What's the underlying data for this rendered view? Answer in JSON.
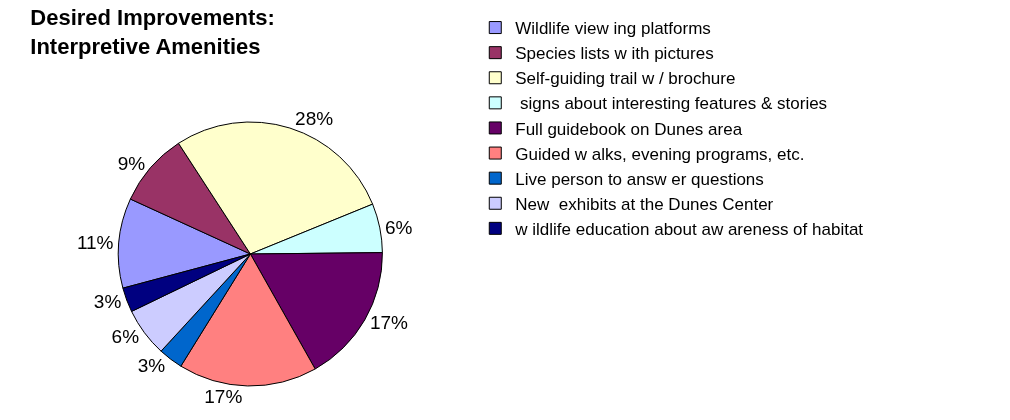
{
  "chart_data": {
    "type": "pie",
    "title": "Desired Improvements:\nInterpretive Amenities",
    "categories": [
      "Wildlife view ing platforms",
      "Species lists w ith pictures",
      "Self-guiding trail w / brochure",
      " signs about interesting features & stories",
      "Full guidebook on Dunes area",
      "Guided w alks, evening programs, etc.",
      "Live person to answ er questions",
      "New  exhibits at the Dunes Center",
      "w ildlife education about aw areness of habitat"
    ],
    "values": [
      11,
      9,
      28,
      6,
      17,
      17,
      3,
      6,
      3
    ],
    "value_labels": [
      "11%",
      "9%",
      "28%",
      "6%",
      "17%",
      "17%",
      "3%",
      "6%",
      "3%"
    ],
    "colors": [
      "#9999ff",
      "#993366",
      "#ffffcc",
      "#ccffff",
      "#660066",
      "#ff8080",
      "#0066cc",
      "#ccccff",
      "#000080"
    ],
    "legend": "right"
  }
}
